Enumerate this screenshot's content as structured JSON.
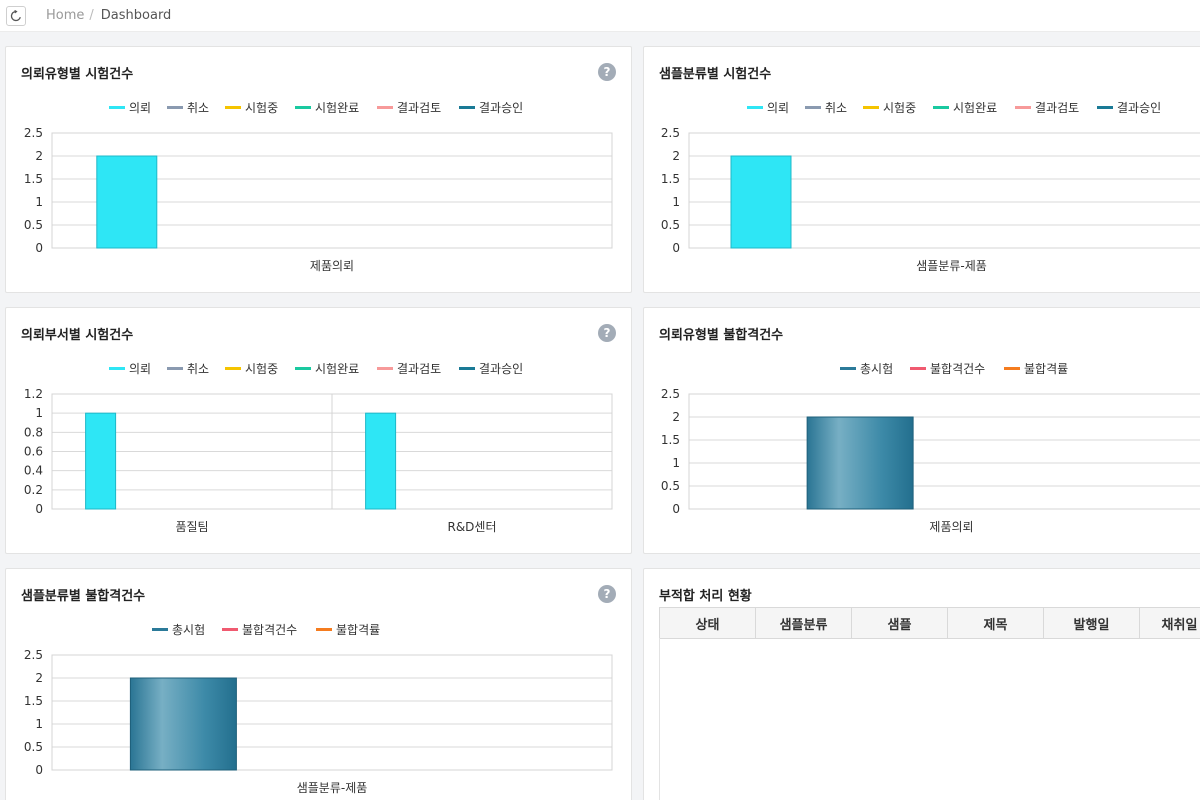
{
  "breadcrumb": {
    "home": "Home",
    "separator": "/",
    "current": "Dashboard"
  },
  "icons": {
    "refresh": "refresh-icon",
    "help": "help-icon"
  },
  "help_glyph": "?",
  "colors": {
    "의뢰": "#2ee6f5",
    "취소": "#8a9ab0",
    "시험중": "#f5c400",
    "시험완료": "#1ac9a0",
    "결과검토": "#f79a9a",
    "결과승인": "#1a7a96",
    "총시험": "#2b7a99",
    "불합격건수": "#f05a70",
    "불합격률": "#f57c1f"
  },
  "panels": [
    {
      "title": "의뢰유형별 시험건수",
      "has_help": true,
      "legend": [
        "의뢰",
        "취소",
        "시험중",
        "시험완료",
        "결과검토",
        "결과승인"
      ],
      "chart_data": {
        "type": "bar",
        "categories": [
          "제품의뢰"
        ],
        "series": [
          {
            "name": "의뢰",
            "values": [
              2
            ]
          },
          {
            "name": "취소",
            "values": [
              0
            ]
          },
          {
            "name": "시험중",
            "values": [
              0
            ]
          },
          {
            "name": "시험완료",
            "values": [
              0
            ]
          },
          {
            "name": "결과검토",
            "values": [
              0
            ]
          },
          {
            "name": "결과승인",
            "values": [
              0
            ]
          }
        ],
        "ylim": [
          0,
          2.5
        ],
        "yticks": [
          "0",
          "0.5",
          "1",
          "1.5",
          "2",
          "2.5"
        ],
        "grid": true,
        "legend_position": "top"
      }
    },
    {
      "title": "샘플분류별 시험건수",
      "has_help": false,
      "legend": [
        "의뢰",
        "취소",
        "시험중",
        "시험완료",
        "결과검토",
        "결과승인"
      ],
      "chart_data": {
        "type": "bar",
        "categories": [
          "샘플분류-제품"
        ],
        "series": [
          {
            "name": "의뢰",
            "values": [
              2
            ]
          },
          {
            "name": "취소",
            "values": [
              0
            ]
          },
          {
            "name": "시험중",
            "values": [
              0
            ]
          },
          {
            "name": "시험완료",
            "values": [
              0
            ]
          },
          {
            "name": "결과검토",
            "values": [
              0
            ]
          },
          {
            "name": "결과승인",
            "values": [
              0
            ]
          }
        ],
        "ylim": [
          0,
          2.5
        ],
        "yticks": [
          "0",
          "0.5",
          "1",
          "1.5",
          "2",
          "2.5"
        ],
        "grid": true,
        "legend_position": "top"
      }
    },
    {
      "title": "의뢰부서별 시험건수",
      "has_help": true,
      "legend": [
        "의뢰",
        "취소",
        "시험중",
        "시험완료",
        "결과검토",
        "결과승인"
      ],
      "chart_data": {
        "type": "bar",
        "categories": [
          "품질팀",
          "R&D센터"
        ],
        "series": [
          {
            "name": "의뢰",
            "values": [
              1,
              1
            ]
          },
          {
            "name": "취소",
            "values": [
              0,
              0
            ]
          },
          {
            "name": "시험중",
            "values": [
              0,
              0
            ]
          },
          {
            "name": "시험완료",
            "values": [
              0,
              0
            ]
          },
          {
            "name": "결과검토",
            "values": [
              0,
              0
            ]
          },
          {
            "name": "결과승인",
            "values": [
              0,
              0
            ]
          }
        ],
        "ylim": [
          0,
          1.2
        ],
        "yticks": [
          "0",
          "0.2",
          "0.4",
          "0.6",
          "0.8",
          "1",
          "1.2"
        ],
        "grid": true,
        "legend_position": "top"
      }
    },
    {
      "title": "의뢰유형별 불합격건수",
      "has_help": false,
      "legend": [
        "총시험",
        "불합격건수",
        "불합격률"
      ],
      "chart_data": {
        "type": "bar",
        "categories": [
          "제품의뢰"
        ],
        "series": [
          {
            "name": "총시험",
            "values": [
              2
            ]
          },
          {
            "name": "불합격건수",
            "values": [
              0
            ]
          },
          {
            "name": "불합격률",
            "values": [
              0
            ]
          }
        ],
        "ylim": [
          0,
          2.5
        ],
        "yticks": [
          "0",
          "0.5",
          "1",
          "1.5",
          "2",
          "2.5"
        ],
        "grid": true,
        "legend_position": "top"
      }
    },
    {
      "title": "샘플분류별 불합격건수",
      "has_help": true,
      "legend": [
        "총시험",
        "불합격건수",
        "불합격률"
      ],
      "chart_data": {
        "type": "bar",
        "categories": [
          "샘플분류-제품"
        ],
        "series": [
          {
            "name": "총시험",
            "values": [
              2
            ]
          },
          {
            "name": "불합격건수",
            "values": [
              0
            ]
          },
          {
            "name": "불합격률",
            "values": [
              0
            ]
          }
        ],
        "ylim": [
          0,
          2.5
        ],
        "yticks": [
          "0",
          "0.5",
          "1",
          "1.5",
          "2",
          "2.5"
        ],
        "grid": true,
        "legend_position": "top"
      }
    }
  ],
  "nonconformance": {
    "title": "부적합 처리 현황",
    "columns": [
      "상태",
      "샘플분류",
      "샘플",
      "제목",
      "발행일",
      "채취일"
    ],
    "rows": []
  }
}
